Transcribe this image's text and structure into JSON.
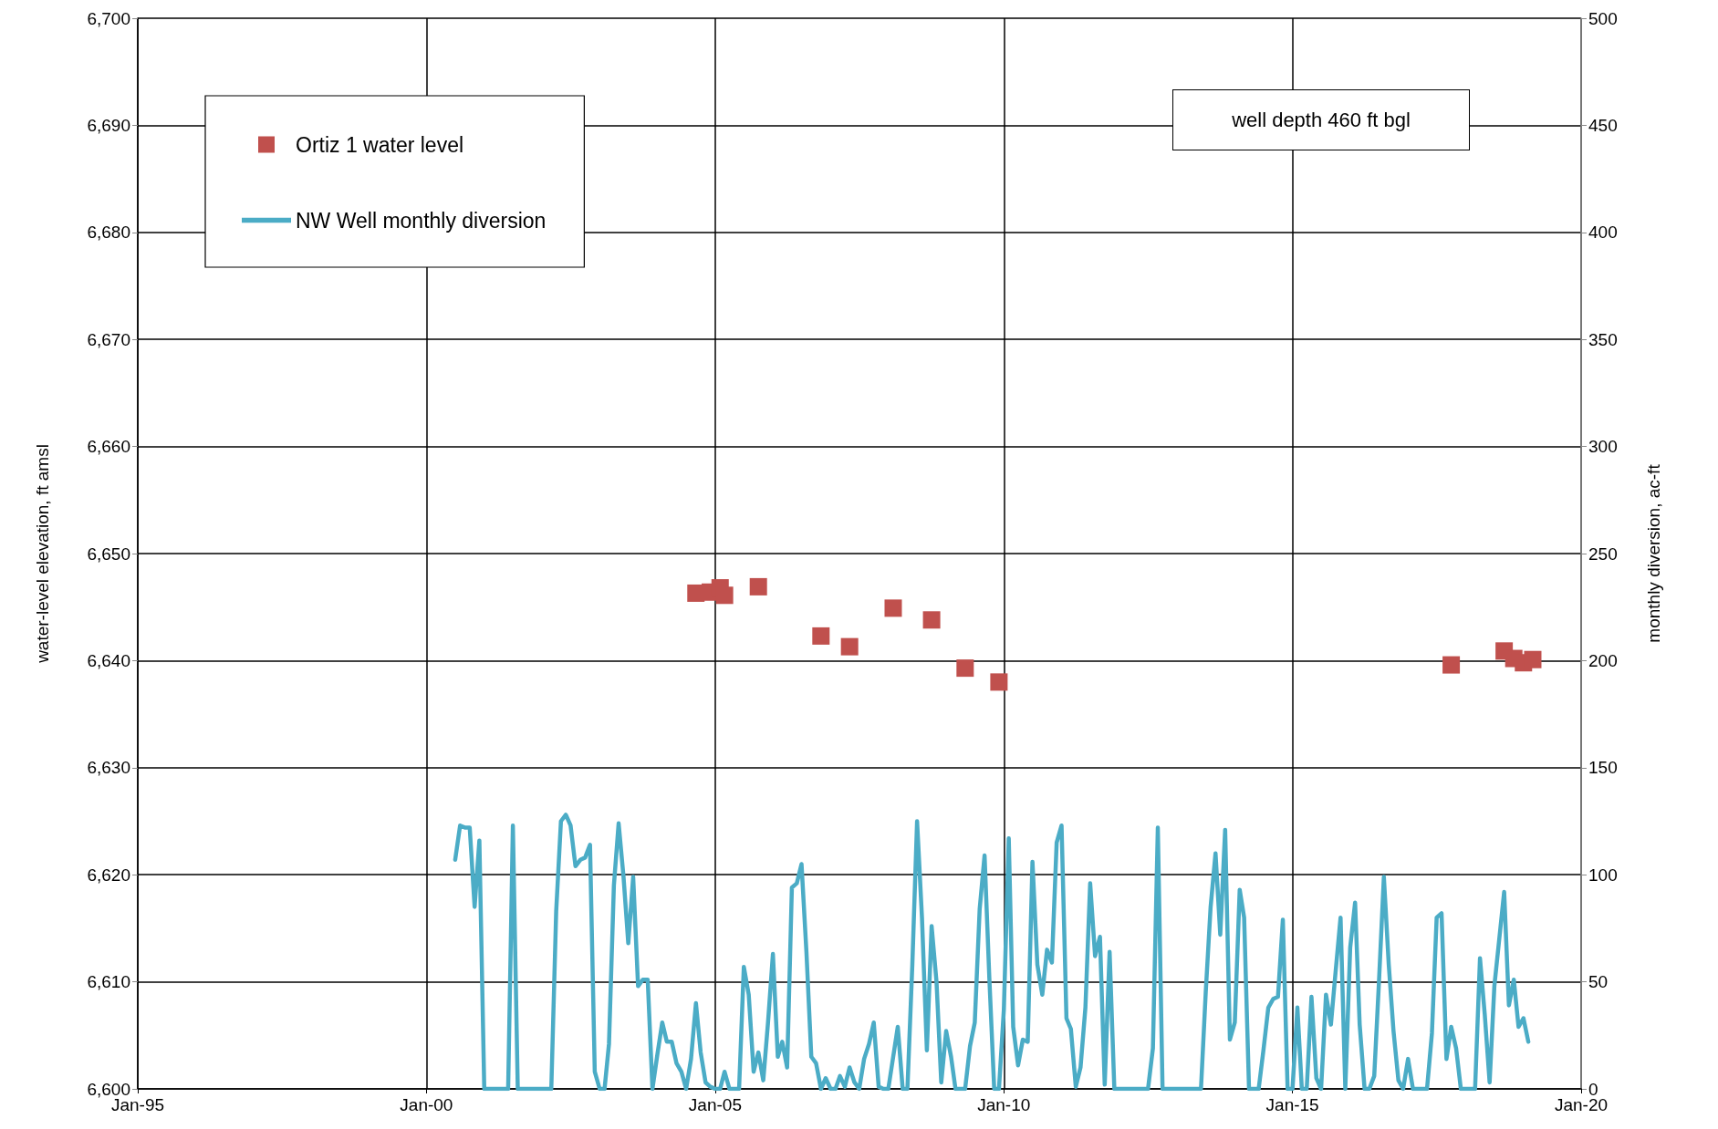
{
  "chart_data": {
    "type": "scatter",
    "xlim": [
      "1995-01",
      "2020-01"
    ],
    "xticks": [
      {
        "value": "1995-01",
        "label": "Jan-95"
      },
      {
        "value": "2000-01",
        "label": "Jan-00"
      },
      {
        "value": "2005-01",
        "label": "Jan-05"
      },
      {
        "value": "2010-01",
        "label": "Jan-10"
      },
      {
        "value": "2015-01",
        "label": "Jan-15"
      },
      {
        "value": "2020-01",
        "label": "Jan-20"
      }
    ],
    "ylim": [
      6600,
      6700
    ],
    "yticks": [
      {
        "value": 6600,
        "label": "6,600"
      },
      {
        "value": 6610,
        "label": "6,610"
      },
      {
        "value": 6620,
        "label": "6,620"
      },
      {
        "value": 6630,
        "label": "6,630"
      },
      {
        "value": 6640,
        "label": "6,640"
      },
      {
        "value": 6650,
        "label": "6,650"
      },
      {
        "value": 6660,
        "label": "6,660"
      },
      {
        "value": 6670,
        "label": "6,670"
      },
      {
        "value": 6680,
        "label": "6,680"
      },
      {
        "value": 6690,
        "label": "6,690"
      },
      {
        "value": 6700,
        "label": "6,700"
      }
    ],
    "y2lim": [
      0,
      500
    ],
    "y2ticks": [
      0,
      50,
      100,
      150,
      200,
      250,
      300,
      350,
      400,
      450,
      500
    ],
    "ylabel": "water-level elevation, ft amsl",
    "y2label": "monthly diversion, ac-ft",
    "grid": true,
    "legend": "top left",
    "annotations": [
      "well depth 460 ft bgl"
    ],
    "series": [
      {
        "name": "Ortiz 1 water level",
        "marker": "square",
        "color": "#c0504d",
        "x": [
          "2004-09",
          "2004-12",
          "2005-02",
          "2005-03",
          "2005-10",
          "2006-11",
          "2007-05",
          "2008-02",
          "2008-10",
          "2009-05",
          "2009-12",
          "2017-10",
          "2018-09",
          "2018-10",
          "2018-11",
          "2019-01",
          "2019-02",
          "2019-03"
        ],
        "values": [
          6646.3,
          6646.4,
          6646.8,
          6646.1,
          6646.9,
          6642.3,
          6641.3,
          6644.9,
          6643.8,
          6639.3,
          6638.0,
          6639.6,
          6640.9,
          null,
          6640.2,
          6639.8,
          null,
          6640.1
        ]
      },
      {
        "name": "NW Well monthly diversion",
        "type": "line",
        "axis": "y2",
        "line_style": "solid",
        "color": "#4bacc6",
        "x": [
          "2000-07",
          "2000-08",
          "2000-09",
          "2000-10",
          "2000-11",
          "2000-12",
          "2001-01",
          "2001-06",
          "2001-07",
          "2001-08",
          "2002-03",
          "2002-04",
          "2002-05",
          "2002-06",
          "2002-07",
          "2002-08",
          "2002-09",
          "2002-10",
          "2002-11",
          "2002-12",
          "2003-01",
          "2003-02",
          "2003-03",
          "2003-04",
          "2003-05",
          "2003-06",
          "2003-07",
          "2003-08",
          "2003-09",
          "2003-10",
          "2003-11",
          "2003-12",
          "2004-01",
          "2004-02",
          "2004-03",
          "2004-04",
          "2004-05",
          "2004-06",
          "2004-07",
          "2004-08",
          "2004-09",
          "2004-10",
          "2004-11",
          "2004-12",
          "2005-01",
          "2005-02",
          "2005-03",
          "2005-04",
          "2005-06",
          "2005-07",
          "2005-08",
          "2005-09",
          "2005-10",
          "2005-11",
          "2005-12",
          "2006-01",
          "2006-02",
          "2006-03",
          "2006-04",
          "2006-05",
          "2006-06",
          "2006-07",
          "2006-08",
          "2006-09",
          "2006-10",
          "2006-11",
          "2006-12",
          "2007-01",
          "2007-02",
          "2007-03",
          "2007-04",
          "2007-05",
          "2007-06",
          "2007-07",
          "2007-08",
          "2007-09",
          "2007-10",
          "2007-11",
          "2007-12",
          "2008-01",
          "2008-02",
          "2008-03",
          "2008-04",
          "2008-05",
          "2008-06",
          "2008-07",
          "2008-08",
          "2008-09",
          "2008-10",
          "2008-11",
          "2008-12",
          "2009-01",
          "2009-02",
          "2009-03",
          "2009-05",
          "2009-06",
          "2009-07",
          "2009-08",
          "2009-09",
          "2009-10",
          "2009-11",
          "2009-12",
          "2010-01",
          "2010-02",
          "2010-03",
          "2010-04",
          "2010-05",
          "2010-06",
          "2010-07",
          "2010-08",
          "2010-09",
          "2010-10",
          "2010-11",
          "2010-12",
          "2011-01",
          "2011-02",
          "2011-03",
          "2011-04",
          "2011-05",
          "2011-06",
          "2011-07",
          "2011-08",
          "2011-09",
          "2011-10",
          "2011-11",
          "2011-12",
          "2012-07",
          "2012-08",
          "2012-09",
          "2012-10",
          "2013-06",
          "2013-07",
          "2013-08",
          "2013-09",
          "2013-10",
          "2013-11",
          "2013-12",
          "2014-01",
          "2014-02",
          "2014-03",
          "2014-04",
          "2014-06",
          "2014-07",
          "2014-08",
          "2014-09",
          "2014-10",
          "2014-11",
          "2014-12",
          "2015-01",
          "2015-02",
          "2015-03",
          "2015-04",
          "2015-05",
          "2015-06",
          "2015-07",
          "2015-08",
          "2015-09",
          "2015-10",
          "2015-11",
          "2015-12",
          "2016-01",
          "2016-02",
          "2016-03",
          "2016-04",
          "2016-05",
          "2016-06",
          "2016-07",
          "2016-08",
          "2016-09",
          "2016-10",
          "2016-11",
          "2016-12",
          "2017-01",
          "2017-02",
          "2017-05",
          "2017-06",
          "2017-07",
          "2017-08",
          "2017-09",
          "2017-10",
          "2017-11",
          "2017-12",
          "2018-03",
          "2018-04",
          "2018-05",
          "2018-06",
          "2018-07",
          "2018-08",
          "2018-09",
          "2018-10",
          "2018-11",
          "2018-12",
          "2019-01",
          "2019-02"
        ],
        "values": [
          107,
          123,
          122,
          122,
          85,
          116,
          0,
          0,
          123,
          0,
          0,
          83,
          125,
          128,
          123,
          104,
          107,
          108,
          114,
          8,
          0,
          0,
          21,
          95,
          124,
          99,
          68,
          99,
          48,
          51,
          51,
          0,
          16,
          31,
          22,
          22,
          12,
          8,
          0,
          14,
          40,
          17,
          3,
          1,
          0,
          0,
          8,
          0,
          0,
          57,
          44,
          8,
          17,
          4,
          31,
          63,
          15,
          22,
          10,
          94,
          96,
          105,
          64,
          15,
          12,
          0,
          5,
          0,
          0,
          6,
          1,
          10,
          3,
          0,
          14,
          21,
          31,
          1,
          0,
          0,
          15,
          29,
          0,
          0,
          58,
          125,
          80,
          18,
          76,
          50,
          3,
          27,
          15,
          0,
          0,
          20,
          31,
          84,
          109,
          52,
          0,
          0,
          37,
          117,
          29,
          11,
          23,
          22,
          106,
          58,
          44,
          65,
          59,
          115,
          123,
          33,
          28,
          1,
          10,
          38,
          96,
          62,
          71,
          2,
          64,
          0,
          0,
          19,
          122,
          0,
          0,
          45,
          85,
          110,
          72,
          121,
          23,
          31,
          93,
          80,
          0,
          0,
          18,
          38,
          42,
          43,
          79,
          0,
          0,
          38,
          0,
          0,
          43,
          5,
          0,
          44,
          30,
          55,
          80,
          0,
          66,
          87,
          30,
          0,
          0,
          6,
          50,
          99,
          58,
          27,
          4,
          0,
          14,
          0,
          0,
          26,
          80,
          82,
          14,
          29,
          19,
          0,
          0,
          61,
          35,
          3,
          48,
          70,
          92,
          39,
          51,
          29,
          33,
          22
        ]
      }
    ]
  }
}
